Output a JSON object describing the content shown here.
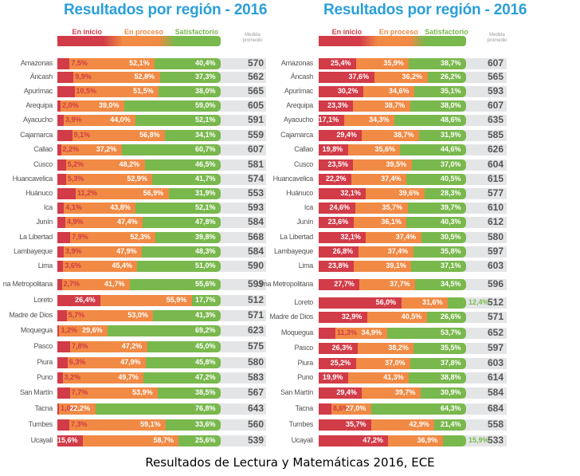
{
  "caption": "Resultados de Lectura y Matemáticas 2016, ECE",
  "chart_data": [
    {
      "type": "bar",
      "stacked": true,
      "orientation": "horizontal",
      "title": "Resultados por región - 2016",
      "legend": [
        "En inicio",
        "En proceso",
        "Satisfactorio"
      ],
      "legend_position": "top",
      "extra_column_header": "Medida promedio",
      "colors": {
        "En inicio": "#d23b48",
        "En proceso": "#f08a45",
        "Satisfactorio": "#79b84d"
      },
      "categories": [
        "Amazonas",
        "Áncash",
        "Apurímac",
        "Arequipa",
        "Ayacucho",
        "Cajamarca",
        "Callao",
        "Cusco",
        "Huancavelica",
        "Huánuco",
        "Ica",
        "Junín",
        "La Libertad",
        "Lambayeque",
        "Lima",
        "Lima Metropolitana",
        "Loreto",
        "Madre de Dios",
        "Moquegua",
        "Pasco",
        "Piura",
        "Puno",
        "San Martín",
        "Tacna",
        "Tumbes",
        "Ucayali"
      ],
      "category_display": [
        "Amazonas",
        "Áncash",
        "Apurímac",
        "Arequipa",
        "Ayacucho",
        "Cajamarca",
        "Callao",
        "Cusco",
        "Huancavelica",
        "Huánuco",
        "Ica",
        "Junín",
        "La Libertad",
        "Lambayeque",
        "Lima",
        "na Metropolitana",
        "Loreto",
        "Madre de Dios",
        "Moquegua",
        "Pasco",
        "Piura",
        "Puno",
        "San Martín",
        "Tacna",
        "Tumbes",
        "Ucayali"
      ],
      "series": [
        {
          "name": "En inicio",
          "values": [
            7.5,
            9.9,
            10.5,
            2.0,
            3.9,
            9.1,
            2.2,
            5.2,
            5.3,
            11.2,
            4.1,
            4.9,
            7.9,
            3.9,
            3.6,
            2.7,
            26.4,
            5.7,
            1.2,
            7.8,
            6.3,
            3.2,
            7.7,
            1.0,
            7.3,
            15.6
          ]
        },
        {
          "name": "En proceso",
          "values": [
            52.1,
            52.8,
            51.5,
            39.0,
            44.0,
            56.8,
            37.2,
            48.2,
            52.9,
            56.9,
            43.8,
            47.4,
            52.3,
            47.9,
            45.4,
            41.7,
            55.9,
            53.0,
            29.6,
            47.2,
            47.9,
            49.7,
            53.9,
            22.2,
            59.1,
            58.7
          ]
        },
        {
          "name": "Satisfactorio",
          "values": [
            40.4,
            37.3,
            38.0,
            59.0,
            52.1,
            34.1,
            60.7,
            46.5,
            41.7,
            31.9,
            52.1,
            47.8,
            39.8,
            48.3,
            51.0,
            55.6,
            17.7,
            41.3,
            69.2,
            45.0,
            45.8,
            47.2,
            38.5,
            76.8,
            33.6,
            25.6
          ]
        }
      ],
      "medida_promedio": [
        570,
        562,
        565,
        605,
        591,
        559,
        607,
        581,
        574,
        553,
        593,
        584,
        568,
        584,
        590,
        599,
        512,
        571,
        623,
        575,
        580,
        583,
        567,
        643,
        560,
        539
      ],
      "xlim": [
        0,
        100
      ],
      "unit": "%"
    },
    {
      "type": "bar",
      "stacked": true,
      "orientation": "horizontal",
      "title": "Resultados por región - 2016",
      "legend": [
        "En inicio",
        "En proceso",
        "Satisfactorio"
      ],
      "legend_position": "top",
      "extra_column_header": "Medida promedio",
      "colors": {
        "En inicio": "#d23b48",
        "En proceso": "#f08a45",
        "Satisfactorio": "#79b84d"
      },
      "categories": [
        "Amazonas",
        "Áncash",
        "Apurímac",
        "Arequipa",
        "Ayacucho",
        "Cajamarca",
        "Callao",
        "Cusco",
        "Huancavelica",
        "Huánuco",
        "Ica",
        "Junín",
        "La Libertad",
        "Lambayeque",
        "Lima",
        "Lima Metropolitana",
        "Loreto",
        "Madre de Dios",
        "Moquegua",
        "Pasco",
        "Piura",
        "Puno",
        "San Martín",
        "Tacna",
        "Tumbes",
        "Ucayali"
      ],
      "category_display": [
        "Amazonas",
        "Áncash",
        "Apurímac",
        "Arequipa",
        "Ayacucho",
        "Cajamarca",
        "Callao",
        "Cusco",
        "Huancavelica",
        "Huánuco",
        "Ica",
        "Junín",
        "La Libertad",
        "Lambayeque",
        "Lima",
        "Lima Metropolitana",
        "Loreto",
        "Madre de Dios",
        "Moquegua",
        "Pasco",
        "Piura",
        "Puno",
        "San Martín",
        "Tacna",
        "Tumbes",
        "Ucayali"
      ],
      "series": [
        {
          "name": "En inicio",
          "values": [
            25.4,
            37.6,
            30.2,
            23.3,
            17.1,
            29.4,
            19.8,
            23.5,
            22.2,
            32.1,
            24.6,
            23.6,
            32.1,
            26.8,
            23.8,
            27.7,
            56.0,
            32.9,
            11.3,
            26.3,
            25.2,
            19.9,
            29.4,
            8.6,
            35.7,
            47.2
          ]
        },
        {
          "name": "En proceso",
          "values": [
            35.9,
            36.2,
            34.6,
            38.7,
            34.3,
            38.7,
            35.6,
            39.5,
            37.4,
            39.6,
            35.7,
            36.1,
            37.4,
            37.4,
            39.1,
            37.7,
            31.6,
            40.5,
            34.9,
            38.2,
            37.0,
            41.3,
            39.7,
            27.0,
            42.9,
            36.9
          ]
        },
        {
          "name": "Satisfactorio",
          "values": [
            38.7,
            26.2,
            35.1,
            38.0,
            48.6,
            31.9,
            44.6,
            37.0,
            40.5,
            28.3,
            39.7,
            40.3,
            30.5,
            35.8,
            37.1,
            34.5,
            12.4,
            26.6,
            53.7,
            35.5,
            37.8,
            38.8,
            30.9,
            64.3,
            21.4,
            15.9
          ]
        }
      ],
      "medida_promedio": [
        607,
        565,
        593,
        607,
        635,
        585,
        626,
        604,
        615,
        577,
        610,
        612,
        580,
        597,
        603,
        596,
        512,
        571,
        652,
        597,
        603,
        614,
        584,
        684,
        558,
        533
      ],
      "xlim": [
        0,
        100
      ],
      "unit": "%"
    }
  ]
}
